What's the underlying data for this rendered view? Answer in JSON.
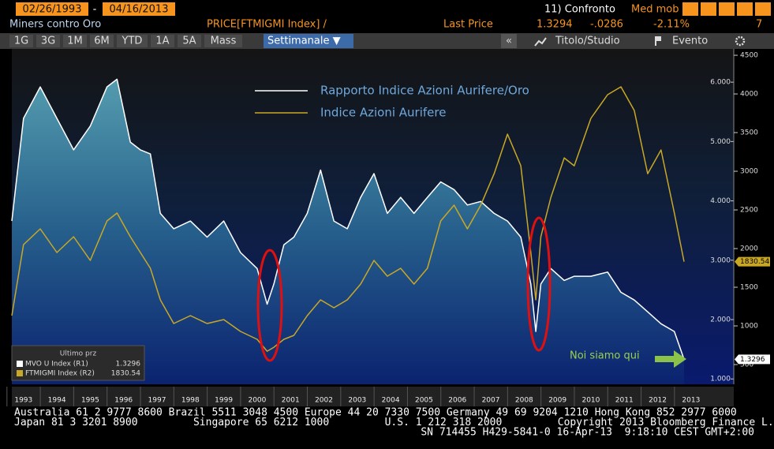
{
  "header": {
    "start_date": "02/26/1993",
    "separator": "-",
    "end_date": "04/16/2013",
    "compare": "11) Confronto",
    "moving_avg": "Med mob",
    "title": "Miners contro Oro",
    "security": "PRICE[FTMIGMI Index] /",
    "last_price_label": "Last Price",
    "last_price": "1.3294",
    "change": "-.0286",
    "change_pct": "-2.11%",
    "count": "7"
  },
  "toolbar": {
    "periods": [
      "1G",
      "3G",
      "1M",
      "6M",
      "YTD",
      "1A",
      "5A",
      "Mass"
    ],
    "frequency": "Settimanale ▼",
    "collapse": "«",
    "study": "Titolo/Studio",
    "event": "Evento"
  },
  "chart_data": {
    "type": "line",
    "xlim": [
      1993.15,
      2014.78
    ],
    "xticks": [
      {
        "value": 1993.5,
        "label": "1993"
      },
      {
        "value": 1994.5,
        "label": "1994"
      },
      {
        "value": 1995.5,
        "label": "1995"
      },
      {
        "value": 1996.5,
        "label": "1996"
      },
      {
        "value": 1997.5,
        "label": "1997"
      },
      {
        "value": 1998.5,
        "label": "1998"
      },
      {
        "value": 1999.5,
        "label": "1999"
      },
      {
        "value": 2000.5,
        "label": "2000"
      },
      {
        "value": 2001.5,
        "label": "2001"
      },
      {
        "value": 2002.5,
        "label": "2002"
      },
      {
        "value": 2003.5,
        "label": "2003"
      },
      {
        "value": 2004.5,
        "label": "2004"
      },
      {
        "value": 2005.5,
        "label": "2005"
      },
      {
        "value": 2006.5,
        "label": "2006"
      },
      {
        "value": 2007.5,
        "label": "2007"
      },
      {
        "value": 2008.5,
        "label": "2008"
      },
      {
        "value": 2009.5,
        "label": "2009"
      },
      {
        "value": 2010.5,
        "label": "2010"
      },
      {
        "value": 2011.5,
        "label": "2011"
      },
      {
        "value": 2012.5,
        "label": "2012"
      },
      {
        "value": 2013.5,
        "label": "2013"
      }
    ],
    "ylim": [
      0.91,
      6.56
    ],
    "yticks": [
      {
        "value": 1,
        "label": "1.000"
      },
      {
        "value": 2,
        "label": "2.000"
      },
      {
        "value": 3,
        "label": "3.000"
      },
      {
        "value": 4,
        "label": "4.000"
      },
      {
        "value": 5,
        "label": "5.000"
      },
      {
        "value": 6,
        "label": "6.000"
      }
    ],
    "y2lim": [
      245,
      4582
    ],
    "y2ticks": [
      500,
      1000,
      1500,
      2000,
      2500,
      3000,
      3500,
      4000,
      4500
    ],
    "x": [
      1993.15,
      1993.5,
      1994.0,
      1994.5,
      1995.0,
      1995.5,
      1996.0,
      1996.3,
      1996.7,
      1997.0,
      1997.3,
      1997.6,
      1998.0,
      1998.5,
      1999.0,
      1999.5,
      2000.0,
      2000.5,
      2000.8,
      2001.0,
      2001.3,
      2001.6,
      2002.0,
      2002.4,
      2002.8,
      2003.2,
      2003.6,
      2004.0,
      2004.4,
      2004.8,
      2005.2,
      2005.6,
      2006.0,
      2006.4,
      2006.8,
      2007.2,
      2007.6,
      2008.0,
      2008.4,
      2008.7,
      2008.85,
      2009.0,
      2009.3,
      2009.7,
      2010.0,
      2010.5,
      2011.0,
      2011.4,
      2011.8,
      2012.2,
      2012.6,
      2013.0,
      2013.29
    ],
    "series": [
      {
        "name": "Rapporto Indice Azioni Aurifere/Oro",
        "color": "#ffffff",
        "axis": "y",
        "fill": true,
        "values": [
          3.66,
          5.39,
          5.92,
          5.39,
          4.86,
          5.26,
          5.92,
          6.05,
          4.99,
          4.86,
          4.79,
          3.79,
          3.53,
          3.66,
          3.39,
          3.66,
          3.13,
          2.86,
          2.26,
          2.6,
          3.26,
          3.39,
          3.79,
          4.52,
          3.66,
          3.53,
          4.06,
          4.46,
          3.79,
          4.06,
          3.79,
          4.06,
          4.32,
          4.19,
          3.93,
          3.99,
          3.79,
          3.66,
          3.39,
          2.6,
          1.8,
          2.6,
          2.86,
          2.66,
          2.73,
          2.73,
          2.8,
          2.46,
          2.33,
          2.13,
          1.93,
          1.8,
          1.33
        ]
      },
      {
        "name": "Indice Azioni Aurifere",
        "color": "#c9a825",
        "axis": "y2",
        "fill": false,
        "values": [
          1133,
          2051,
          2255,
          1949,
          2153,
          1847,
          2357,
          2459,
          2153,
          1949,
          1745,
          1337,
          1031,
          1133,
          1031,
          1082,
          929,
          827,
          673,
          724,
          827,
          878,
          1133,
          1337,
          1235,
          1337,
          1541,
          1847,
          1643,
          1745,
          1541,
          1745,
          2357,
          2561,
          2255,
          2561,
          2969,
          3480,
          3071,
          1949,
          1337,
          2153,
          2663,
          3173,
          3071,
          3684,
          3990,
          4092,
          3786,
          2969,
          3276,
          2459,
          1831
        ]
      }
    ],
    "annotations": [
      "Noi siamo qui"
    ],
    "legend_box": {
      "title": "Ultimo prz",
      "entries": [
        {
          "name": "MVO U Index (R1)",
          "value": "1.3296"
        },
        {
          "name": "FTMIGMI Index (R2)",
          "value": "1830.54"
        }
      ]
    }
  },
  "footer": {
    "lines": [
      "Australia 61 2 9777 8600 Brazil 5511 3048 4500 Europe 44 20 7330 7500 Germany 49 69 9204 1210 Hong Kong 852 2977 6000",
      "Japan 81 3 3201 8900         Singapore 65 6212 1000         U.S. 1 212 318 2000         Copyright 2013 Bloomberg Finance L.P.",
      "SN 714455 H429-5841-0 16-Apr-13  9:18:10 CEST GMT+2:00"
    ]
  }
}
